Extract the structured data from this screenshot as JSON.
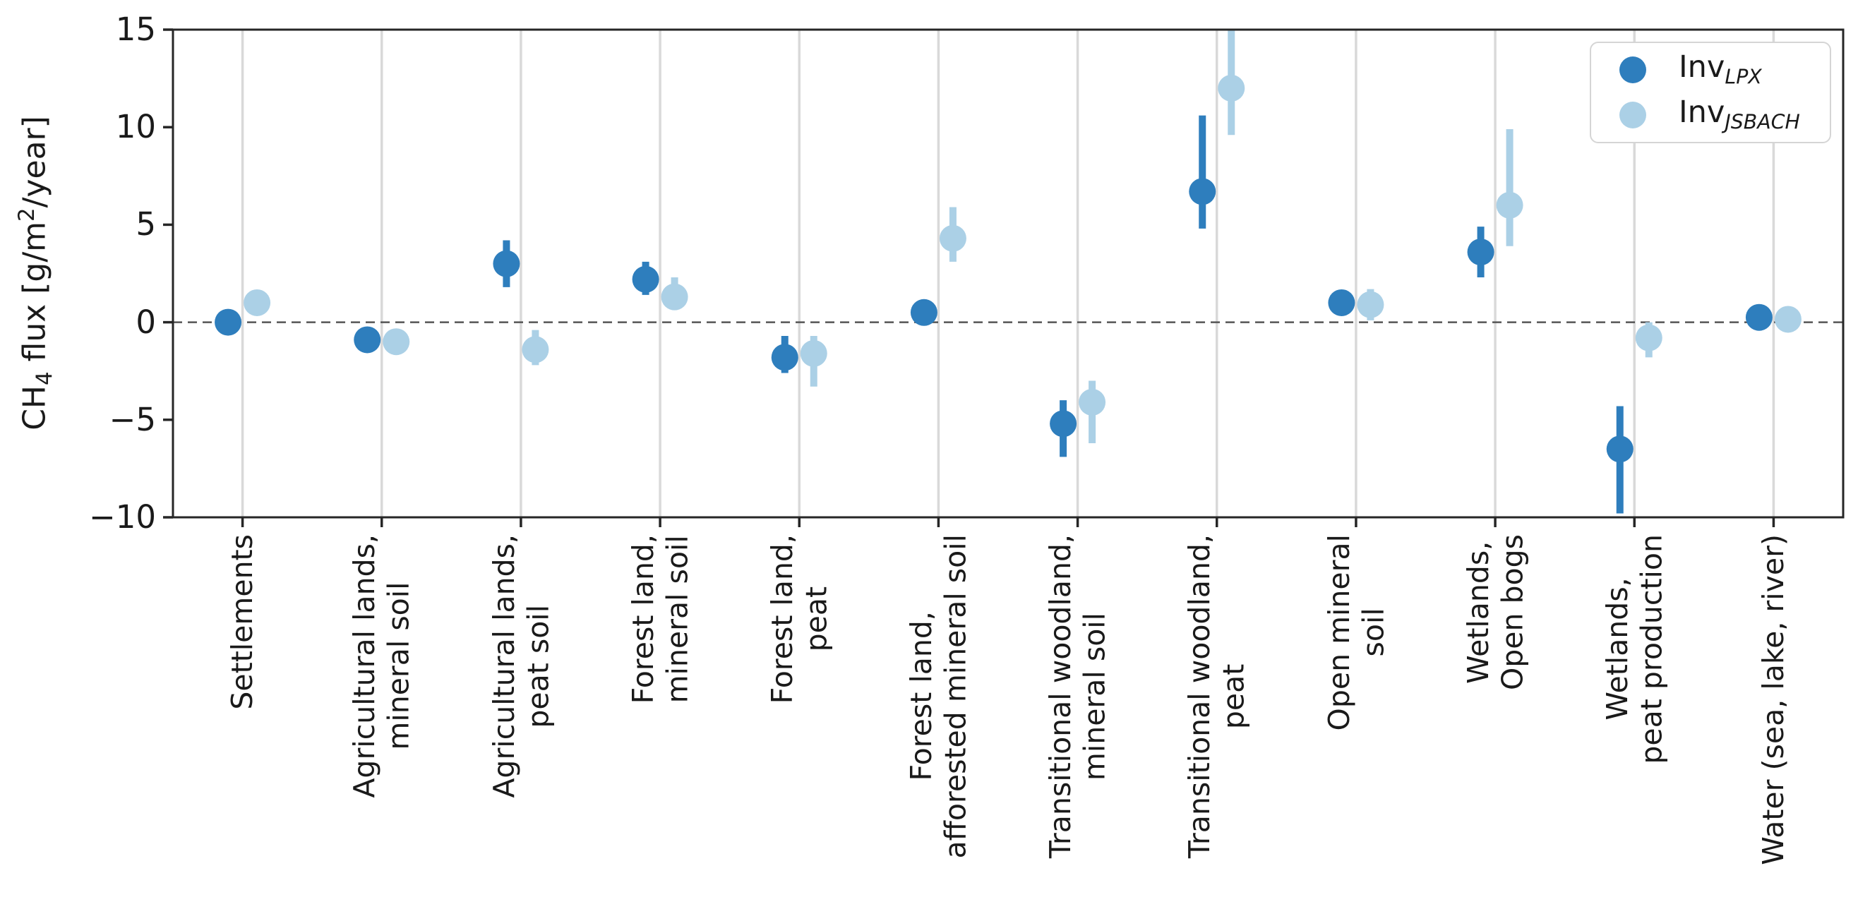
{
  "figure": {
    "background": "#ffffff",
    "ylabel": {
      "p1": "CH",
      "sub": "4",
      "p2": " flux [g/m",
      "sup": "2",
      "p3": "/year]"
    }
  },
  "legend": {
    "position": "upper right",
    "items": [
      {
        "prefix": "Inv",
        "sub": "LPX",
        "color": "#2e7ebd"
      },
      {
        "prefix": "Inv",
        "sub": "JSBACH",
        "color": "#abd0e6"
      }
    ]
  },
  "chart_data": {
    "type": "scatter",
    "title": "",
    "ylabel": "CH4 flux [g/m2/year]",
    "ylim": [
      -10,
      15
    ],
    "yticks": [
      15,
      10,
      5,
      0,
      -5,
      -10
    ],
    "ytick_labels": [
      "15",
      "10",
      "5",
      "0",
      "−5",
      "−10"
    ],
    "grid": "vertical-category-gridlines",
    "zero_line": true,
    "categories": [
      [
        "Settlements"
      ],
      [
        "Agricultural lands,",
        "mineral soil"
      ],
      [
        "Agricultural lands,",
        "peat soil"
      ],
      [
        "Forest land,",
        "mineral soil"
      ],
      [
        "Forest land,",
        "peat"
      ],
      [
        "Forest land,",
        "afforested mineral soil"
      ],
      [
        "Transitional woodland,",
        "mineral soil"
      ],
      [
        "Transitional woodland,",
        "peat"
      ],
      [
        "Open mineral",
        "soil"
      ],
      [
        "Wetlands,",
        "Open bogs"
      ],
      [
        "Wetlands,",
        "peat production"
      ],
      [
        "Water (sea, lake, river)"
      ]
    ],
    "series": [
      {
        "name": "Inv_LPX",
        "color": "#2e7ebd",
        "points": [
          {
            "y": 0.0,
            "lo": -0.3,
            "hi": 0.3
          },
          {
            "y": -0.9,
            "lo": -1.3,
            "hi": -0.5
          },
          {
            "y": 3.0,
            "lo": 1.8,
            "hi": 4.2
          },
          {
            "y": 2.2,
            "lo": 1.4,
            "hi": 3.1
          },
          {
            "y": -1.8,
            "lo": -2.6,
            "hi": -0.7
          },
          {
            "y": 0.5,
            "lo": 0.0,
            "hi": 1.0
          },
          {
            "y": -5.2,
            "lo": -6.9,
            "hi": -4.0
          },
          {
            "y": 6.7,
            "lo": 4.8,
            "hi": 10.6
          },
          {
            "y": 1.0,
            "lo": 0.6,
            "hi": 1.4
          },
          {
            "y": 3.6,
            "lo": 2.3,
            "hi": 4.9
          },
          {
            "y": -6.5,
            "lo": -9.8,
            "hi": -4.3
          },
          {
            "y": 0.25,
            "lo": 0.05,
            "hi": 0.45
          }
        ]
      },
      {
        "name": "Inv_JSBACH",
        "color": "#abd0e6",
        "points": [
          {
            "y": 1.0,
            "lo": 0.7,
            "hi": 1.3
          },
          {
            "y": -1.0,
            "lo": -1.4,
            "hi": -0.6
          },
          {
            "y": -1.4,
            "lo": -2.2,
            "hi": -0.4
          },
          {
            "y": 1.3,
            "lo": 0.7,
            "hi": 2.3
          },
          {
            "y": -1.6,
            "lo": -3.3,
            "hi": -0.7
          },
          {
            "y": 4.3,
            "lo": 3.1,
            "hi": 5.9
          },
          {
            "y": -4.1,
            "lo": -6.2,
            "hi": -3.0
          },
          {
            "y": 12.0,
            "lo": 9.6,
            "hi": 15.6
          },
          {
            "y": 0.9,
            "lo": 0.1,
            "hi": 1.7
          },
          {
            "y": 6.0,
            "lo": 3.9,
            "hi": 9.9
          },
          {
            "y": -0.8,
            "lo": -1.8,
            "hi": 0.0
          },
          {
            "y": 0.15,
            "lo": -0.05,
            "hi": 0.35
          }
        ]
      }
    ]
  }
}
